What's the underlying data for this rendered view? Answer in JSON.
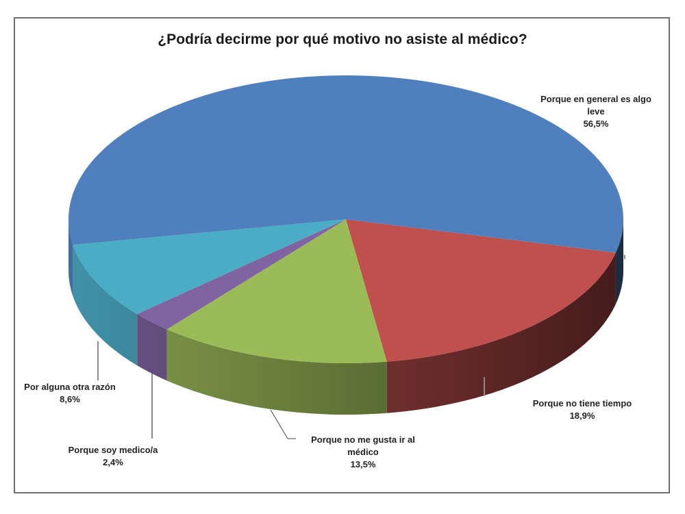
{
  "title": "¿Podría decirme por qué motivo no asiste al médico?",
  "labels": [
    {
      "name": "Porque en general es algo leve",
      "line1": "Porque en general es algo",
      "line2": "leve",
      "pct": "56,5%"
    },
    {
      "name": "Porque no tiene tiempo",
      "line1": "Porque no tiene tiempo",
      "pct": "18,9%"
    },
    {
      "name": "Porque no me gusta ir al médico",
      "line1": "Porque no me gusta ir al",
      "line2": "médico",
      "pct": "13,5%"
    },
    {
      "name": "Porque soy medico/a",
      "line1": "Porque soy medico/a",
      "pct": "2,4%"
    },
    {
      "name": "Por alguna otra razón",
      "line1": "Por alguna otra razón",
      "pct": "8,6%"
    }
  ],
  "colors": {
    "blue": "#4f7fbd",
    "red": "#c0504d",
    "green": "#9bbb59",
    "purple": "#8064a2",
    "cyan": "#4bacc6"
  },
  "chart_data": {
    "type": "pie",
    "style": "3d-exploded-none",
    "title": "¿Podría decirme por qué motivo no asiste al médico?",
    "categories": [
      "Porque en general es algo leve",
      "Porque no tiene tiempo",
      "Porque no me gusta ir al médico",
      "Porque soy medico/a",
      "Por alguna otra razón"
    ],
    "values": [
      56.5,
      18.9,
      13.5,
      2.4,
      8.6
    ],
    "value_labels": [
      "56,5%",
      "18,9%",
      "13,5%",
      "2,4%",
      "8,6%"
    ],
    "colors": [
      "#4f7fbd",
      "#c0504d",
      "#9bbb59",
      "#8064a2",
      "#4bacc6"
    ],
    "legend": "none (data labels with leader lines)"
  }
}
